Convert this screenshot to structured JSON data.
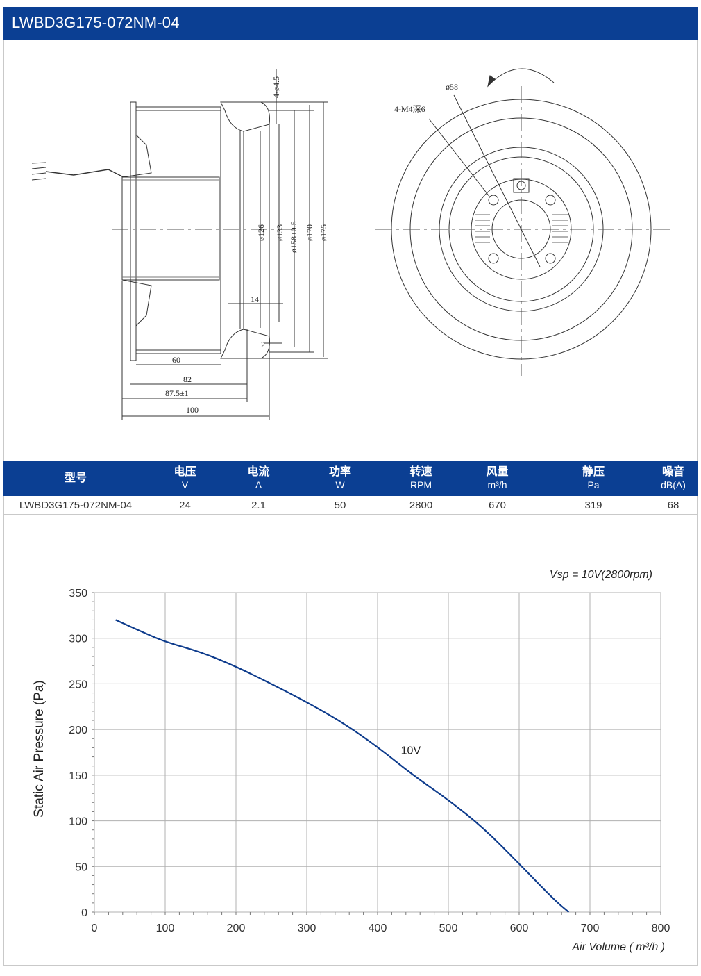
{
  "header": {
    "title": "LWBD3G175-072NM-04"
  },
  "drawing": {
    "dimensions": {
      "holes": "4-ø4.5",
      "d126": "ø126",
      "d133": "ø133",
      "d158": "ø158±0.5",
      "d170": "ø170",
      "d175": "ø175",
      "w14": "14",
      "w2": "2",
      "w60": "60",
      "w82": "82",
      "w87": "87.5±1",
      "w100": "100",
      "d58": "ø58",
      "thread": "4-M4深6"
    }
  },
  "specs": {
    "headers": [
      {
        "label": "型号",
        "unit": ""
      },
      {
        "label": "电压",
        "unit": "V"
      },
      {
        "label": "电流",
        "unit": "A"
      },
      {
        "label": "功率",
        "unit": "W"
      },
      {
        "label": "转速",
        "unit": "RPM"
      },
      {
        "label": "风量",
        "unit": "m³/h"
      },
      {
        "label": "静压",
        "unit": "Pa"
      },
      {
        "label": "噪音",
        "unit": "dB(A)"
      }
    ],
    "row": [
      "LWBD3G175-072NM-04",
      "24",
      "2.1",
      "50",
      "2800",
      "670",
      "319",
      "68"
    ]
  },
  "chart_data": {
    "type": "line",
    "annotation": "Vsp = 10V(2800rpm)",
    "xlabel": "Air Volume ( m³/h )",
    "ylabel": "Static Air Pressure  (Pa)",
    "xlim": [
      0,
      800
    ],
    "ylim": [
      0,
      350
    ],
    "xticks": [
      0,
      100,
      200,
      300,
      400,
      500,
      600,
      700,
      800
    ],
    "yticks": [
      0,
      50,
      100,
      150,
      200,
      250,
      300,
      350
    ],
    "grid": true,
    "series": [
      {
        "name": "10V",
        "color": "#0d3b8c",
        "x": [
          30,
          70,
          100,
          150,
          200,
          250,
          300,
          350,
          400,
          450,
          500,
          550,
          600,
          650,
          670
        ],
        "y": [
          320,
          306,
          296,
          285,
          269,
          250,
          230,
          208,
          181,
          150,
          123,
          92,
          53,
          13,
          0
        ]
      }
    ]
  }
}
